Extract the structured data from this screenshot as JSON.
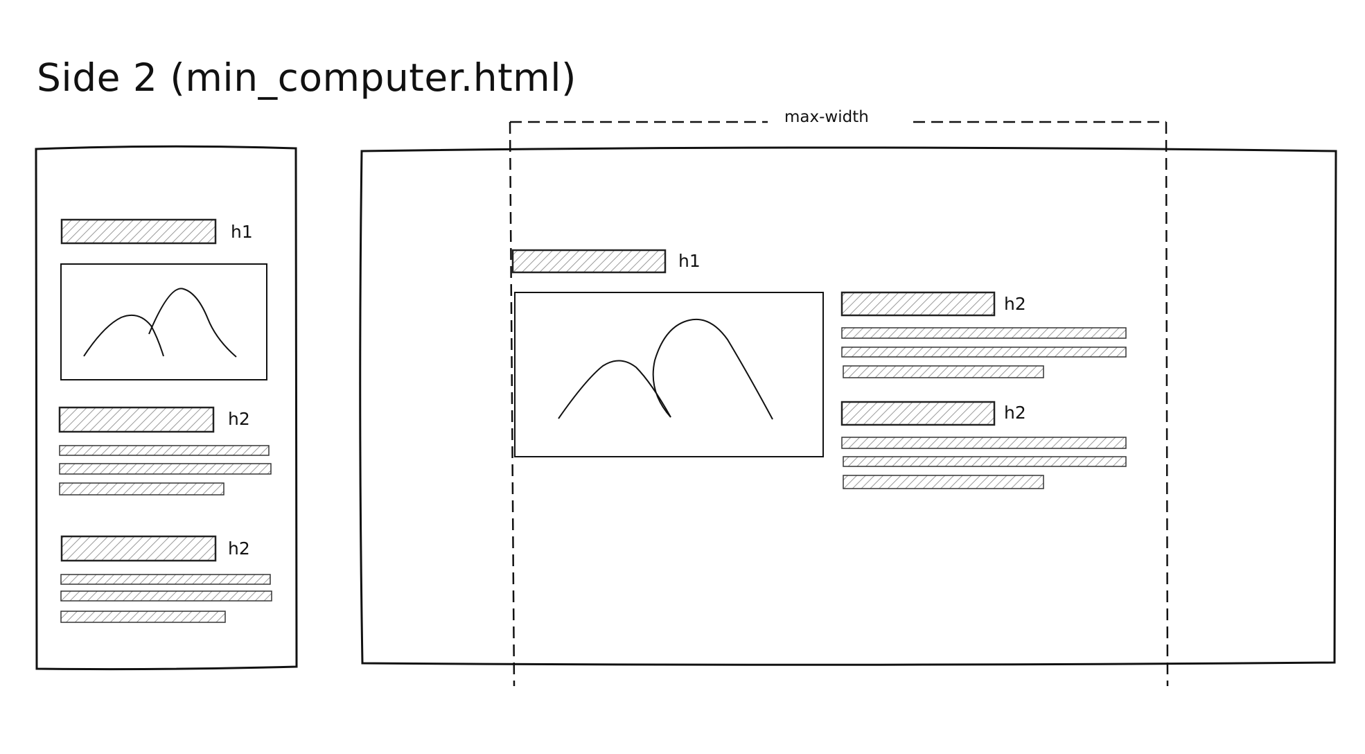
{
  "title": "Side 2 (min_computer.html)",
  "max_width_label": "max-width",
  "mobile": {
    "h1": "h1",
    "sections": [
      {
        "label": "h2"
      },
      {
        "label": "h2"
      }
    ]
  },
  "desktop": {
    "h1": "h1",
    "sections": [
      {
        "label": "h2"
      },
      {
        "label": "h2"
      }
    ]
  },
  "colors": {
    "stroke": "#111111",
    "hatch": "#9a9a9a"
  }
}
